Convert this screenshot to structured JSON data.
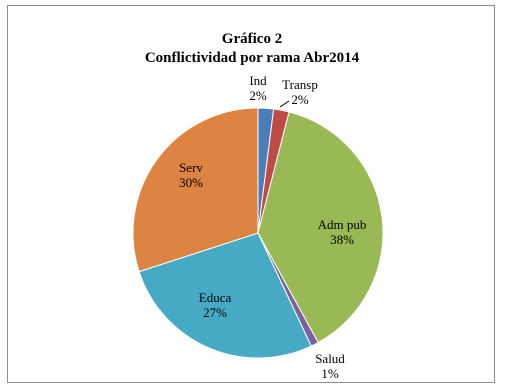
{
  "chart_data": {
    "type": "pie",
    "title": "Gráfico 2",
    "subtitle": "Conflictividad por rama Abr2014",
    "slices": [
      {
        "name": "Ind",
        "value": 2,
        "label": "2%",
        "color": "#4a7ebb"
      },
      {
        "name": "Transp",
        "value": 2,
        "label": "2%",
        "color": "#be4b48"
      },
      {
        "name": "Adm pub",
        "value": 38,
        "label": "38%",
        "color": "#98b954"
      },
      {
        "name": "Salud",
        "value": 1,
        "label": "1%",
        "color": "#7d60a0"
      },
      {
        "name": "Educa",
        "value": 27,
        "label": "27%",
        "color": "#46aac5"
      },
      {
        "name": "Serv",
        "value": 30,
        "label": "30%",
        "color": "#dd8442"
      }
    ],
    "legend": "none"
  }
}
